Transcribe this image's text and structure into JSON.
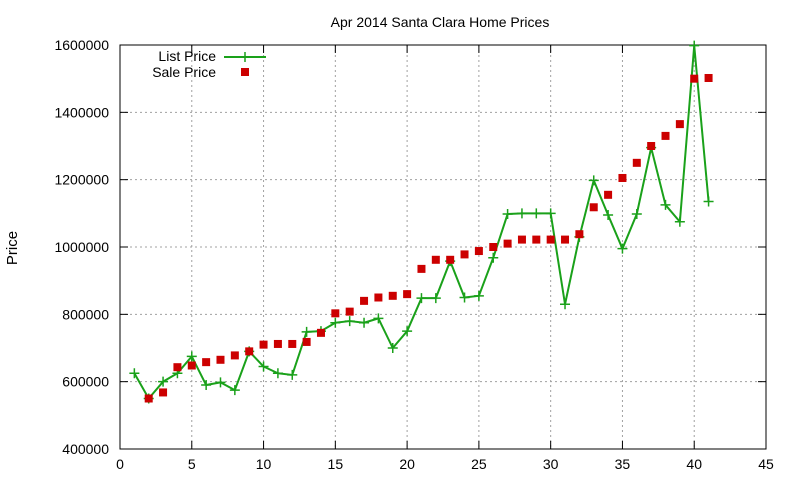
{
  "chart_data": {
    "type": "line",
    "title": "Apr 2014 Santa Clara Home Prices",
    "xlabel": "",
    "ylabel": "Price",
    "xlim": [
      0,
      45
    ],
    "ylim": [
      400000,
      1600000
    ],
    "xticks": [
      0,
      5,
      10,
      15,
      20,
      25,
      30,
      35,
      40,
      45
    ],
    "yticks": [
      400000,
      600000,
      800000,
      1000000,
      1200000,
      1400000,
      1600000
    ],
    "grid": true,
    "legend_position": "top-left",
    "series": [
      {
        "name": "List Price",
        "style": "line-plus",
        "color": "#1aa11a",
        "x": [
          1,
          2,
          3,
          4,
          5,
          6,
          7,
          8,
          9,
          10,
          11,
          12,
          13,
          14,
          15,
          16,
          17,
          18,
          19,
          20,
          21,
          22,
          23,
          24,
          25,
          26,
          27,
          28,
          29,
          30,
          31,
          32,
          33,
          34,
          35,
          36,
          37,
          38,
          39,
          40,
          41
        ],
        "y": [
          625000,
          550000,
          600000,
          625000,
          675000,
          590000,
          598000,
          575000,
          690000,
          645000,
          625000,
          620000,
          748000,
          750000,
          775000,
          780000,
          775000,
          788000,
          700000,
          750000,
          848000,
          848000,
          958000,
          850000,
          855000,
          968000,
          1098000,
          1100000,
          1100000,
          1100000,
          830000,
          1030000,
          1198000,
          1095000,
          995000,
          1098000,
          1295000,
          1125000,
          1075000,
          1598000,
          1135000
        ]
      },
      {
        "name": "Sale Price",
        "style": "square",
        "color": "#cc0000",
        "x": [
          2,
          3,
          4,
          5,
          6,
          7,
          8,
          9,
          10,
          11,
          12,
          13,
          14,
          15,
          16,
          17,
          18,
          19,
          20,
          21,
          22,
          23,
          24,
          25,
          26,
          27,
          28,
          29,
          30,
          31,
          32,
          33,
          34,
          35,
          36,
          37,
          38,
          39,
          40,
          41
        ],
        "y": [
          550000,
          568000,
          643000,
          648000,
          658000,
          665000,
          678000,
          690000,
          710000,
          712000,
          712000,
          718000,
          745000,
          803000,
          808000,
          840000,
          850000,
          855000,
          860000,
          935000,
          962000,
          962000,
          978000,
          988000,
          1000000,
          1010000,
          1022000,
          1022000,
          1022000,
          1022000,
          1038000,
          1118000,
          1155000,
          1205000,
          1250000,
          1300000,
          1330000,
          1365000,
          1500000,
          1502000
        ]
      }
    ]
  }
}
